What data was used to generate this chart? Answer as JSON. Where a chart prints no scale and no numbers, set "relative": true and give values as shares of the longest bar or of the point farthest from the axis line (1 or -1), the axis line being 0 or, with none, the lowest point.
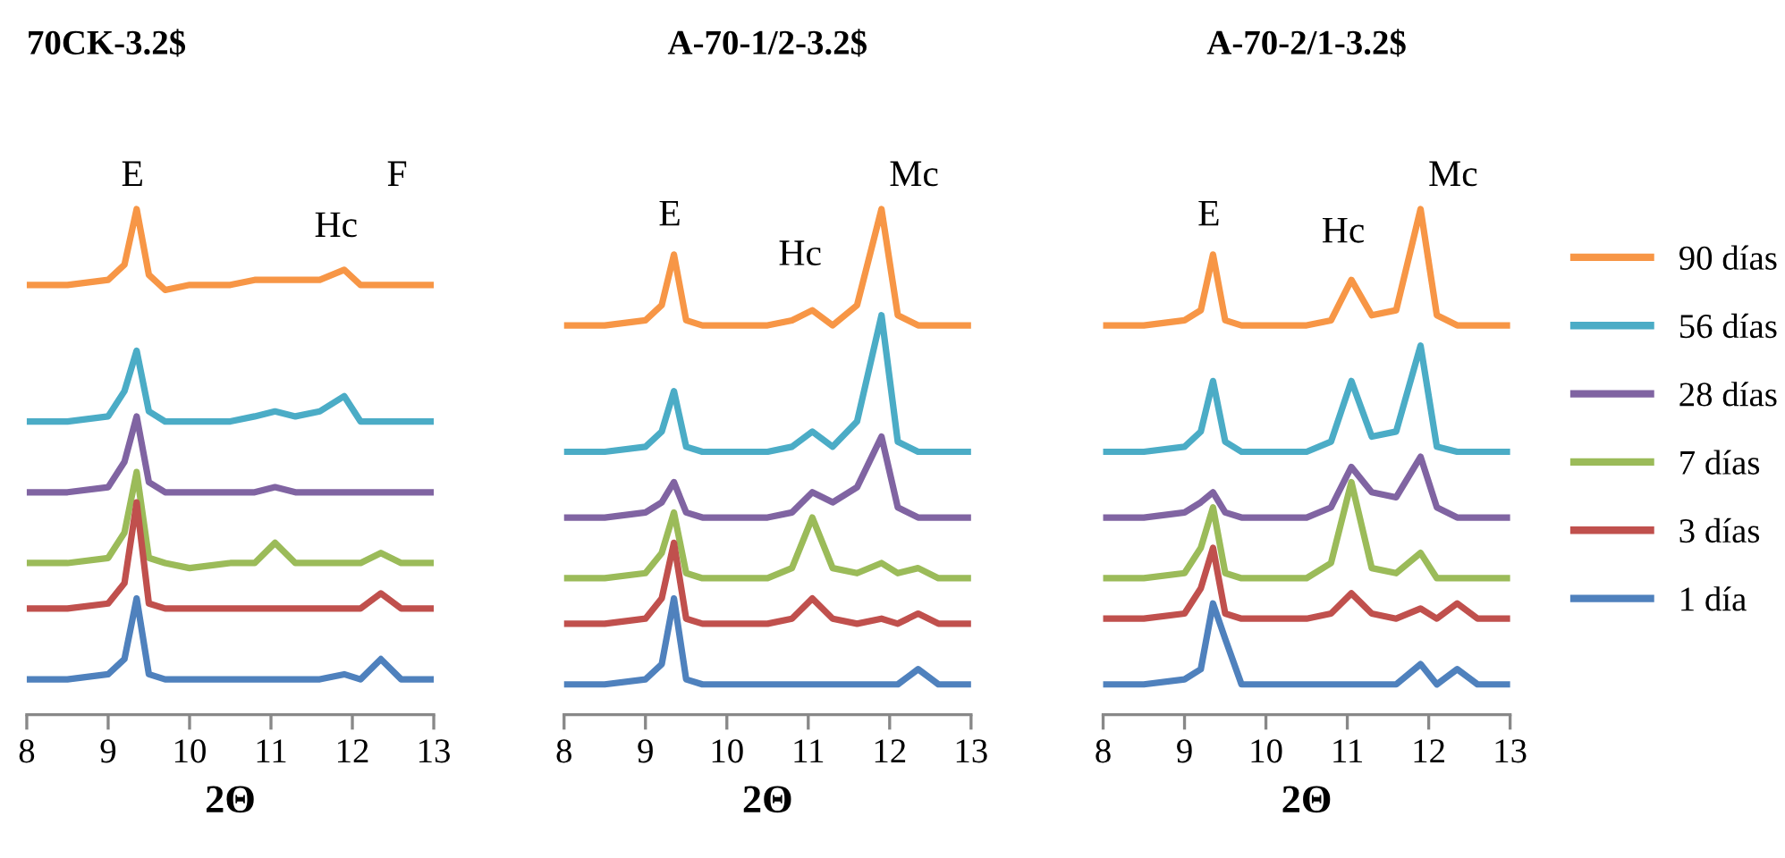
{
  "chart_data": [
    {
      "type": "line",
      "title": "70CK-3.2$",
      "xlabel": "2Θ",
      "xlim": [
        8,
        13
      ],
      "xticks": [
        8,
        9,
        10,
        11,
        12,
        13
      ],
      "relative": true,
      "tick_labels": "x",
      "x": [
        8,
        8.5,
        9.0,
        9.2,
        9.35,
        9.5,
        9.7,
        10,
        10.5,
        10.8,
        11.05,
        11.3,
        11.6,
        11.9,
        12.1,
        12.35,
        12.6,
        13
      ],
      "series": [
        {
          "color": "#f79646",
          "values": [
            0.85,
            0.85,
            0.86,
            0.89,
            1.0,
            0.87,
            0.84,
            0.85,
            0.85,
            0.86,
            0.86,
            0.86,
            0.86,
            0.88,
            0.85,
            0.85,
            0.85,
            0.85
          ]
        },
        {
          "color": "#4bacc6",
          "values": [
            0.58,
            0.58,
            0.59,
            0.64,
            0.72,
            0.6,
            0.58,
            0.58,
            0.58,
            0.59,
            0.6,
            0.59,
            0.6,
            0.63,
            0.58,
            0.58,
            0.58,
            0.58
          ]
        },
        {
          "color": "#8064a2",
          "values": [
            0.44,
            0.44,
            0.45,
            0.5,
            0.59,
            0.46,
            0.44,
            0.44,
            0.44,
            0.44,
            0.45,
            0.44,
            0.44,
            0.44,
            0.44,
            0.44,
            0.44,
            0.44
          ]
        },
        {
          "color": "#9bbb59",
          "values": [
            0.3,
            0.3,
            0.31,
            0.36,
            0.48,
            0.31,
            0.3,
            0.29,
            0.3,
            0.3,
            0.34,
            0.3,
            0.3,
            0.3,
            0.3,
            0.32,
            0.3,
            0.3
          ]
        },
        {
          "color": "#c0504d",
          "values": [
            0.21,
            0.21,
            0.22,
            0.26,
            0.42,
            0.22,
            0.21,
            0.21,
            0.21,
            0.21,
            0.21,
            0.21,
            0.21,
            0.21,
            0.21,
            0.24,
            0.21,
            0.21
          ]
        },
        {
          "color": "#4f81bd",
          "values": [
            0.07,
            0.07,
            0.08,
            0.11,
            0.23,
            0.08,
            0.07,
            0.07,
            0.07,
            0.07,
            0.07,
            0.07,
            0.07,
            0.08,
            0.07,
            0.11,
            0.07,
            0.07
          ]
        }
      ],
      "annotations": [
        "E",
        "Hc",
        "F"
      ]
    },
    {
      "type": "line",
      "title": "A-70-1/2-3.2$",
      "xlabel": "2Θ",
      "xlim": [
        8,
        13
      ],
      "xticks": [
        8,
        9,
        10,
        11,
        12,
        13
      ],
      "relative": true,
      "tick_labels": "x",
      "x": [
        8,
        8.5,
        9.0,
        9.2,
        9.35,
        9.5,
        9.7,
        10,
        10.5,
        10.8,
        11.05,
        11.3,
        11.6,
        11.9,
        12.1,
        12.35,
        12.6,
        13
      ],
      "series": [
        {
          "color": "#f79646",
          "values": [
            0.77,
            0.77,
            0.78,
            0.81,
            0.91,
            0.78,
            0.77,
            0.77,
            0.77,
            0.78,
            0.8,
            0.77,
            0.81,
            1.0,
            0.79,
            0.77,
            0.77,
            0.77
          ]
        },
        {
          "color": "#4bacc6",
          "values": [
            0.52,
            0.52,
            0.53,
            0.56,
            0.64,
            0.53,
            0.52,
            0.52,
            0.52,
            0.53,
            0.56,
            0.53,
            0.58,
            0.79,
            0.54,
            0.52,
            0.52,
            0.52
          ]
        },
        {
          "color": "#8064a2",
          "values": [
            0.39,
            0.39,
            0.4,
            0.42,
            0.46,
            0.4,
            0.39,
            0.39,
            0.39,
            0.4,
            0.44,
            0.42,
            0.45,
            0.55,
            0.41,
            0.39,
            0.39,
            0.39
          ]
        },
        {
          "color": "#9bbb59",
          "values": [
            0.27,
            0.27,
            0.28,
            0.32,
            0.4,
            0.28,
            0.27,
            0.27,
            0.27,
            0.29,
            0.39,
            0.29,
            0.28,
            0.3,
            0.28,
            0.29,
            0.27,
            0.27
          ]
        },
        {
          "color": "#c0504d",
          "values": [
            0.18,
            0.18,
            0.19,
            0.23,
            0.34,
            0.19,
            0.18,
            0.18,
            0.18,
            0.19,
            0.23,
            0.19,
            0.18,
            0.19,
            0.18,
            0.2,
            0.18,
            0.18
          ]
        },
        {
          "color": "#4f81bd",
          "values": [
            0.06,
            0.06,
            0.07,
            0.1,
            0.23,
            0.07,
            0.06,
            0.06,
            0.06,
            0.06,
            0.06,
            0.06,
            0.06,
            0.06,
            0.06,
            0.09,
            0.06,
            0.06
          ]
        }
      ],
      "annotations": [
        "E",
        "Hc",
        "Mc"
      ]
    },
    {
      "type": "line",
      "title": "A-70-2/1-3.2$",
      "xlabel": "2Θ",
      "xlim": [
        8,
        13
      ],
      "xticks": [
        8,
        9,
        10,
        11,
        12,
        13
      ],
      "relative": true,
      "tick_labels": "x",
      "legend": "right",
      "x": [
        8,
        8.5,
        9.0,
        9.2,
        9.35,
        9.5,
        9.7,
        10,
        10.5,
        10.8,
        11.05,
        11.3,
        11.6,
        11.9,
        12.1,
        12.35,
        12.6,
        13
      ],
      "series": [
        {
          "name": "90 días",
          "color": "#f79646",
          "values": [
            0.77,
            0.77,
            0.78,
            0.8,
            0.91,
            0.78,
            0.77,
            0.77,
            0.77,
            0.78,
            0.86,
            0.79,
            0.8,
            1.0,
            0.79,
            0.77,
            0.77,
            0.77
          ]
        },
        {
          "name": "56 días",
          "color": "#4bacc6",
          "values": [
            0.52,
            0.52,
            0.53,
            0.56,
            0.66,
            0.54,
            0.52,
            0.52,
            0.52,
            0.54,
            0.66,
            0.55,
            0.56,
            0.73,
            0.53,
            0.52,
            0.52,
            0.52
          ]
        },
        {
          "name": "28 días",
          "color": "#8064a2",
          "values": [
            0.39,
            0.39,
            0.4,
            0.42,
            0.44,
            0.4,
            0.39,
            0.39,
            0.39,
            0.41,
            0.49,
            0.44,
            0.43,
            0.51,
            0.41,
            0.39,
            0.39,
            0.39
          ]
        },
        {
          "name": "7 días",
          "color": "#9bbb59",
          "values": [
            0.27,
            0.27,
            0.28,
            0.33,
            0.41,
            0.28,
            0.27,
            0.27,
            0.27,
            0.3,
            0.46,
            0.29,
            0.28,
            0.32,
            0.27,
            0.27,
            0.27,
            0.27
          ]
        },
        {
          "name": "3 días",
          "color": "#c0504d",
          "values": [
            0.19,
            0.19,
            0.2,
            0.25,
            0.33,
            0.2,
            0.19,
            0.19,
            0.19,
            0.2,
            0.24,
            0.2,
            0.19,
            0.21,
            0.19,
            0.22,
            0.19,
            0.19
          ]
        },
        {
          "name": "1 día",
          "color": "#4f81bd",
          "values": [
            0.06,
            0.06,
            0.07,
            0.09,
            0.22,
            0.15,
            0.06,
            0.06,
            0.06,
            0.06,
            0.06,
            0.06,
            0.06,
            0.1,
            0.06,
            0.09,
            0.06,
            0.06
          ]
        }
      ],
      "annotations": [
        "E",
        "Hc",
        "Mc"
      ]
    }
  ]
}
